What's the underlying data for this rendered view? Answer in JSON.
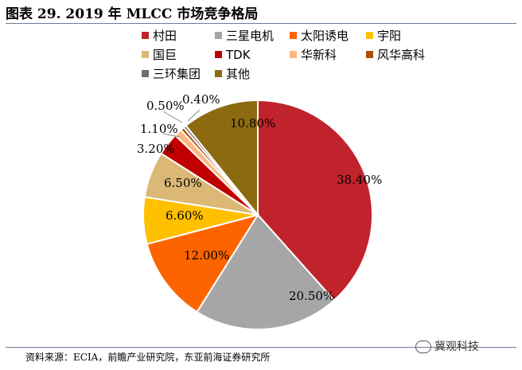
{
  "title": "图表 29. 2019 年 MLCC 市场竞争格局",
  "source": "资料来源：ECIA，前瞻产业研究院，东亚前海证券研究所",
  "watermark": "冀观科技",
  "chart_data": {
    "type": "pie",
    "title": "",
    "legend_position": "top",
    "series": [
      {
        "name": "村田",
        "value": 38.4,
        "label": "38.40%",
        "color": "#c0232c"
      },
      {
        "name": "三星电机",
        "value": 20.5,
        "label": "20.50%",
        "color": "#a6a6a6"
      },
      {
        "name": "太阳诱电",
        "value": 12.0,
        "label": "12.00%",
        "color": "#fd6400"
      },
      {
        "name": "宇阳",
        "value": 6.6,
        "label": "6.60%",
        "color": "#ffc000"
      },
      {
        "name": "国巨",
        "value": 6.5,
        "label": "6.50%",
        "color": "#dbb876"
      },
      {
        "name": "TDK",
        "value": 3.2,
        "label": "3.20%",
        "color": "#c00000"
      },
      {
        "name": "华新科",
        "value": 1.1,
        "label": "1.10%",
        "color": "#ffb980"
      },
      {
        "name": "风华高科",
        "value": 0.5,
        "label": "0.50%",
        "color": "#b04c0c"
      },
      {
        "name": "三环集团",
        "value": 0.4,
        "label": "0.40%",
        "color": "#6e6e6e"
      },
      {
        "name": "其他",
        "value": 10.8,
        "label": "10.80%",
        "color": "#8c6b10"
      }
    ]
  }
}
